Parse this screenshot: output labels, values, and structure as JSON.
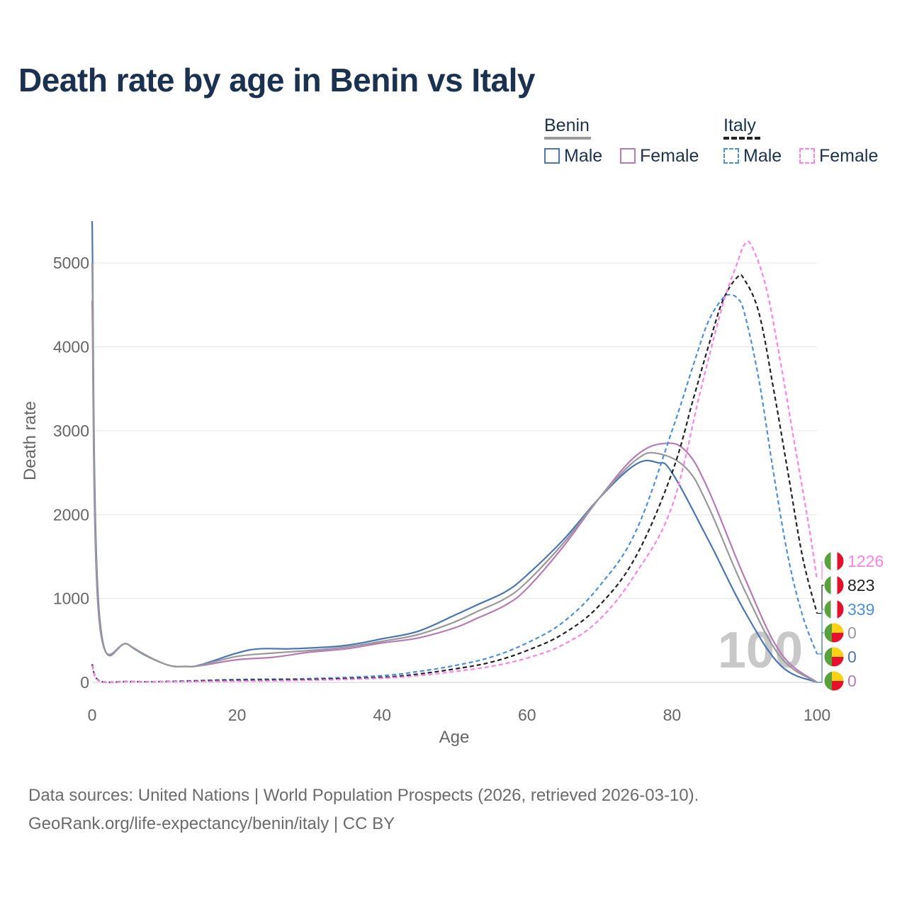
{
  "title": "Death rate by age in Benin vs Italy",
  "legend": {
    "groups": [
      {
        "name": "Benin",
        "items": [
          {
            "label": "Male",
            "color": "#4a76b8",
            "dash": false
          },
          {
            "label": "Female",
            "color": "#b77ab6",
            "dash": false
          }
        ]
      },
      {
        "name": "Italy",
        "items": [
          {
            "label": "Male",
            "color": "#4a90e2",
            "dash": true
          },
          {
            "label": "Female",
            "color": "#ff80e8",
            "dash": true
          }
        ]
      }
    ]
  },
  "footer": {
    "line1": "Data sources: United Nations | World Population Prospects (2026, retrieved 2026-03-10).",
    "line2": "GeoRank.org/life-expectancy/benin/italy | CC BY"
  },
  "chart_data": {
    "type": "line",
    "xlabel": "Age",
    "ylabel": "Death rate",
    "xlim": [
      0,
      100
    ],
    "ylim": [
      0,
      5500
    ],
    "xticks": [
      0,
      20,
      40,
      60,
      80,
      100
    ],
    "yticks": [
      0,
      1000,
      2000,
      3000,
      4000,
      5000
    ],
    "grid": true,
    "current_age_label": "100",
    "series": [
      {
        "name": "Benin Male",
        "color": "#4a76b8",
        "dash": false,
        "x": [
          0,
          1,
          5,
          10,
          13,
          15,
          20,
          23,
          27,
          30,
          35,
          40,
          45,
          50,
          53,
          57,
          60,
          65,
          70,
          75,
          78,
          80,
          85,
          90,
          95,
          100
        ],
        "y": [
          5500,
          810,
          450,
          220,
          190,
          210,
          350,
          400,
          400,
          410,
          440,
          520,
          610,
          800,
          920,
          1080,
          1280,
          1700,
          2200,
          2600,
          2620,
          2500,
          1700,
          850,
          200,
          0
        ]
      },
      {
        "name": "Benin Female",
        "color": "#b77ab6",
        "dash": false,
        "x": [
          0,
          1,
          5,
          10,
          13,
          15,
          20,
          25,
          30,
          35,
          40,
          45,
          50,
          53,
          57,
          60,
          65,
          70,
          75,
          79,
          82,
          85,
          90,
          95,
          100
        ],
        "y": [
          4550,
          720,
          450,
          220,
          190,
          200,
          270,
          300,
          360,
          400,
          470,
          530,
          650,
          760,
          920,
          1120,
          1620,
          2200,
          2700,
          2850,
          2750,
          2300,
          1250,
          350,
          0
        ]
      },
      {
        "name": "Benin Total",
        "color": "#999999",
        "dash": false,
        "x": [
          0,
          1,
          5,
          10,
          13,
          15,
          20,
          25,
          30,
          35,
          40,
          45,
          50,
          53,
          57,
          60,
          65,
          70,
          75,
          78,
          82,
          85,
          90,
          95,
          100
        ],
        "y": [
          5000,
          760,
          450,
          220,
          190,
          205,
          310,
          350,
          380,
          420,
          490,
          570,
          720,
          840,
          1000,
          1200,
          1660,
          2200,
          2650,
          2730,
          2550,
          2100,
          1100,
          300,
          0
        ]
      },
      {
        "name": "Italy Male",
        "color": "#4a90e2",
        "dash": true,
        "x": [
          0,
          1,
          5,
          10,
          20,
          30,
          40,
          45,
          50,
          55,
          60,
          65,
          70,
          75,
          80,
          83,
          85,
          87,
          88,
          89,
          90,
          92,
          94,
          96,
          98,
          100
        ],
        "y": [
          220,
          20,
          10,
          10,
          35,
          45,
          80,
          130,
          200,
          300,
          470,
          720,
          1150,
          1800,
          3000,
          3800,
          4300,
          4580,
          4620,
          4580,
          4400,
          3600,
          2500,
          1500,
          800,
          339
        ]
      },
      {
        "name": "Italy Total",
        "color": "#222222",
        "dash": true,
        "x": [
          0,
          1,
          5,
          10,
          20,
          30,
          40,
          45,
          50,
          55,
          60,
          65,
          70,
          75,
          80,
          83,
          85,
          87,
          89,
          90,
          92,
          94,
          96,
          98,
          100
        ],
        "y": [
          210,
          18,
          9,
          9,
          25,
          35,
          60,
          100,
          160,
          240,
          380,
          580,
          920,
          1500,
          2500,
          3400,
          4000,
          4550,
          4830,
          4800,
          4400,
          3500,
          2500,
          1500,
          823
        ]
      },
      {
        "name": "Italy Female",
        "color": "#ff80e8",
        "dash": true,
        "x": [
          0,
          1,
          5,
          10,
          20,
          30,
          40,
          45,
          50,
          55,
          60,
          65,
          70,
          75,
          80,
          84,
          87,
          89,
          90,
          91,
          93,
          95,
          97,
          99,
          100
        ],
        "y": [
          200,
          15,
          8,
          8,
          15,
          25,
          50,
          80,
          130,
          190,
          290,
          450,
          750,
          1300,
          2100,
          3500,
          4500,
          5000,
          5220,
          5200,
          4700,
          3800,
          2800,
          1800,
          1226
        ]
      }
    ],
    "end_labels": [
      {
        "text": "1226",
        "country": "Italy",
        "color": "#ff80e8",
        "value": 1226
      },
      {
        "text": "823",
        "country": "Italy",
        "color": "#222222",
        "value": 823
      },
      {
        "text": "339",
        "country": "Italy",
        "color": "#4a90e2",
        "value": 339
      },
      {
        "text": "0",
        "country": "Benin",
        "color": "#999999",
        "value": 0
      },
      {
        "text": "0",
        "country": "Benin",
        "color": "#4a76b8",
        "value": 0
      },
      {
        "text": "0",
        "country": "Benin",
        "color": "#b77ab6",
        "value": 0
      }
    ]
  }
}
